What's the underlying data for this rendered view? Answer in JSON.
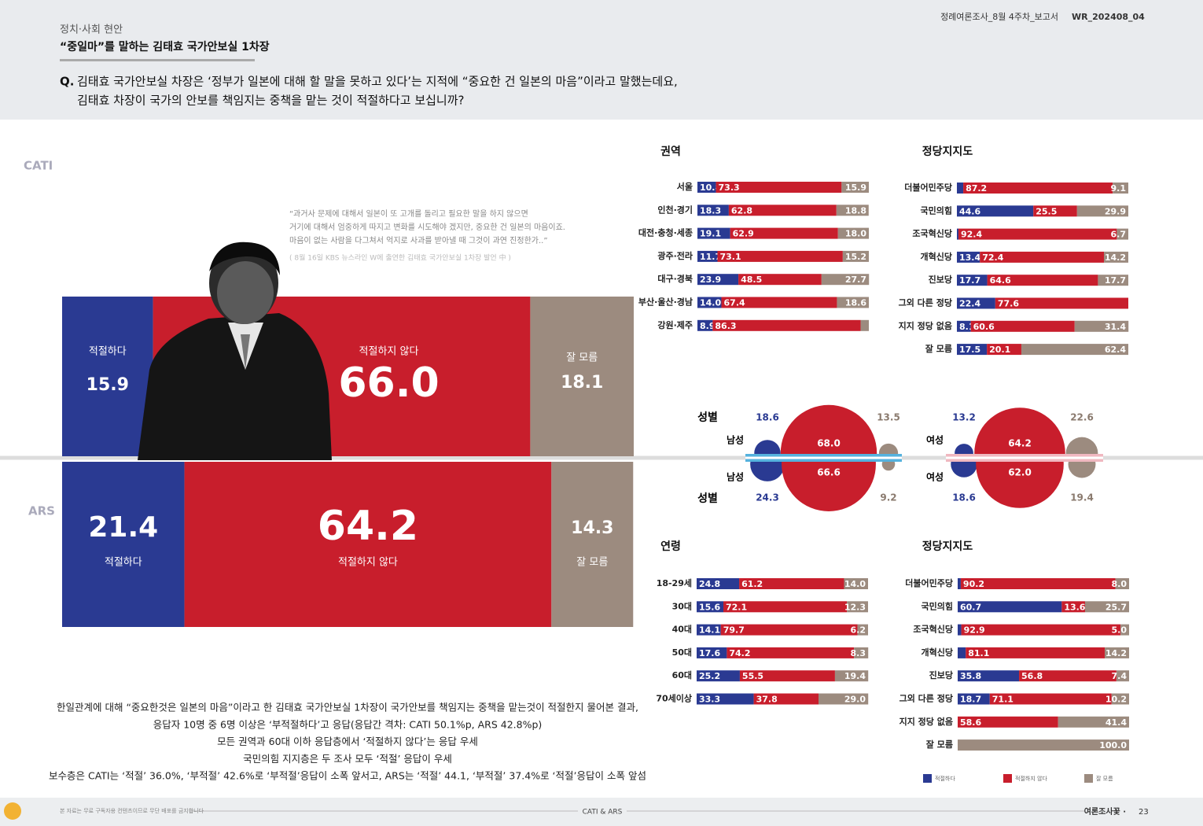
{
  "header": {
    "section": "정치·사회 현안",
    "title": "“중일마”를 말하는 김태효 국가안보실 1차장",
    "report": "정례여론조사_8월 4주차_보고서",
    "code": "WR_202408_04"
  },
  "question": {
    "prefix": "Q.",
    "lines": [
      "김태효 국가안보실 차장은 ‘정부가 일본에 대해 할 말을 못하고 있다’는 지적에 “중요한 건 일본의 마음”이라고 말했는데요,",
      "김태효 차장이 국가의 안보를 책임지는 중책을 맡는 것이 적절하다고 보십니까?"
    ]
  },
  "quote": {
    "lines": [
      "“과거사 문제에 대해서 일본이 또 고개를 돌리고 필요한 말을 하지 않으면",
      "거기에 대해서 엄중하게 따지고 변화를 시도해야 겠지만, 중요한 건 일본의 마음이죠.",
      "마음이 없는 사람을 다그쳐서 억지로 사과를 받아낼 때 그것이 과연 진정한가..”"
    ],
    "source": "( 8월 16일 KBS 뉴스라인 W에 출연한 김태효 국가안보실 1차장 발언 中 )"
  },
  "legend": [
    "적절하다",
    "적절하지 않다",
    "잘 모름"
  ],
  "colors": [
    "#2a3a92",
    "#c81e2c",
    "#9c8b7f"
  ],
  "overall": [
    {
      "survey": "CATI",
      "values": [
        15.9,
        66,
        18.1
      ],
      "value_labels": [
        "15.9",
        "66.0",
        "18.1"
      ]
    },
    {
      "survey": "ARS",
      "values": [
        21.4,
        64.2,
        14.3
      ]
    }
  ],
  "panels": [
    {
      "title": "권역",
      "rows": [
        {
          "name": "서울",
          "values": [
            10.8,
            73.3,
            15.9
          ]
        },
        {
          "name": "인천·경기",
          "values": [
            18.3,
            62.8,
            18.8
          ]
        },
        {
          "name": "대전·충청·세종",
          "values": [
            19.1,
            62.9,
            18
          ],
          "value_labels": [
            "19.1",
            "62.9",
            "18.0"
          ]
        },
        {
          "name": "광주·전라",
          "values": [
            11.7,
            73.1,
            15.2
          ]
        },
        {
          "name": "대구·경북",
          "values": [
            23.9,
            48.5,
            27.7
          ]
        },
        {
          "name": "부산·울산·경남",
          "values": [
            14,
            67.4,
            18.6
          ],
          "value_labels": [
            "14.0",
            "67.4",
            "18.6"
          ]
        },
        {
          "name": "강원·제주",
          "values": [
            8.9,
            86.3,
            4.8
          ],
          "value_labels": [
            "8.9",
            "86.3",
            null
          ]
        }
      ]
    },
    {
      "title": "정당지지도",
      "rows": [
        {
          "name": "더불어민주당",
          "values": [
            3.7,
            87.2,
            9.1
          ],
          "value_labels": [
            null,
            "87.2",
            "9.1"
          ]
        },
        {
          "name": "국민의힘",
          "values": [
            44.6,
            25.5,
            29.9
          ]
        },
        {
          "name": "조국혁신당",
          "values": [
            0.9,
            92.4,
            6.7
          ],
          "value_labels": [
            null,
            "92.4",
            "6.7"
          ]
        },
        {
          "name": "개혁신당",
          "values": [
            13.4,
            72.4,
            14.2
          ]
        },
        {
          "name": "진보당",
          "values": [
            17.7,
            64.6,
            17.7
          ]
        },
        {
          "name": "그외 다른 정당",
          "values": [
            22.4,
            77.6,
            0
          ],
          "value_labels": [
            "22.4",
            "77.6",
            null
          ]
        },
        {
          "name": "지지 정당 없음",
          "values": [
            8.1,
            60.6,
            31.4
          ]
        },
        {
          "name": "잘 모름",
          "values": [
            17.5,
            20.1,
            62.4
          ]
        }
      ]
    },
    {
      "title": "연령",
      "rows": [
        {
          "name": "18-29세",
          "values": [
            24.8,
            61.2,
            14
          ],
          "value_labels": [
            "24.8",
            "61.2",
            "14.0"
          ]
        },
        {
          "name": "30대",
          "values": [
            15.6,
            72.1,
            12.3
          ]
        },
        {
          "name": "40대",
          "values": [
            14.1,
            79.7,
            6.2
          ]
        },
        {
          "name": "50대",
          "values": [
            17.6,
            74.2,
            8.3
          ]
        },
        {
          "name": "60대",
          "values": [
            25.2,
            55.5,
            19.4
          ]
        },
        {
          "name": "70세이상",
          "values": [
            33.3,
            37.8,
            29
          ],
          "value_labels": [
            "33.3",
            "37.8",
            "29.0"
          ]
        }
      ]
    },
    {
      "title": "정당지지도",
      "rows": [
        {
          "name": "더불어민주당",
          "values": [
            1.8,
            90.2,
            8
          ],
          "value_labels": [
            null,
            "90.2",
            "8.0"
          ]
        },
        {
          "name": "국민의힘",
          "values": [
            60.7,
            13.6,
            25.7
          ]
        },
        {
          "name": "조국혁신당",
          "values": [
            2.1,
            92.9,
            5
          ],
          "value_labels": [
            null,
            "92.9",
            "5.0"
          ]
        },
        {
          "name": "개혁신당",
          "values": [
            4.7,
            81.1,
            14.2
          ],
          "value_labels": [
            null,
            "81.1",
            "14.2"
          ]
        },
        {
          "name": "진보당",
          "values": [
            35.8,
            56.8,
            7.4
          ]
        },
        {
          "name": "그외 다른 정당",
          "values": [
            18.7,
            71.1,
            10.2
          ]
        },
        {
          "name": "지지 정당 없음",
          "values": [
            0,
            58.6,
            41.4
          ],
          "value_labels": [
            null,
            "58.6",
            "41.4"
          ]
        },
        {
          "name": "잘 모름",
          "values": [
            0,
            0,
            100
          ],
          "value_labels": [
            null,
            null,
            "100.0"
          ]
        }
      ]
    }
  ],
  "gender": {
    "title": "성별",
    "groups": [
      {
        "name": "남성",
        "cati": [
          18.6,
          68,
          13.5
        ],
        "cati_labels": [
          "18.6",
          "68.0",
          "13.5"
        ],
        "ars": [
          24.3,
          66.6,
          9.2
        ]
      },
      {
        "name": "여성",
        "cati": [
          13.2,
          64.2,
          22.6
        ],
        "ars": [
          18.6,
          62,
          19.4
        ],
        "ars_labels": [
          "18.6",
          "62.0",
          "19.4"
        ]
      }
    ]
  },
  "summary": [
    "한일관계에 대해 “중요한것은 일본의 마음”이라고 한 김태효 국가안보실 1차장이 국가안보를 책임지는 중책을 맡는것이 적절한지 물어본 결과,",
    "응답자 10명 중 6명 이상은 ‘부적절하다’고 응답(응답간 격차: CATI 50.1%p, ARS 42.8%p)",
    "모든 권역과 60대 이하 응답층에서 ‘적절하지 않다’는 응답 우세",
    "국민의힘 지지층은 두 조사 모두 ‘적절’ 응답이 우세",
    "보수층은 CATI는 ‘적절’ 36.0%, ‘부적절’ 42.6%로 ‘부적절’응답이 소폭 앞서고, ARS는 ‘적절’ 44.1, ‘부적절’ 37.4%로 ‘적절’응답이 소폭 앞섬"
  ],
  "footer": {
    "notice": "본 자료는 무료 구독자용 컨텐츠이므로 무단 배포를 금지합니다",
    "center": "CATI & ARS",
    "brand": "여론조사꽃 ·",
    "page": "23"
  }
}
